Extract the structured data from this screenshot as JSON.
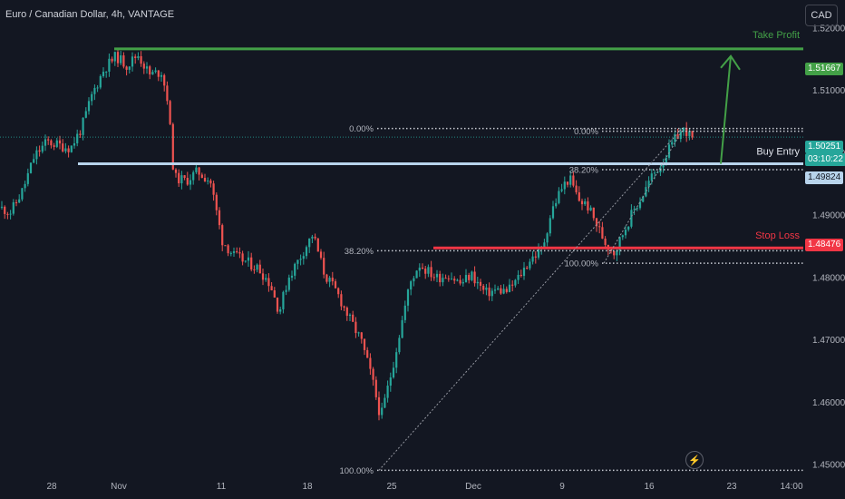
{
  "header": {
    "title": "Euro / Canadian Dollar, 4h, VANTAGE",
    "currency_button": "CAD"
  },
  "colors": {
    "up": "#26a69a",
    "down": "#ef5350",
    "take_profit": "#43a047",
    "stop_loss": "#f23645",
    "entry": "#b8d4ec",
    "current_price": "#26a69a",
    "grid_text": "#b2b5be"
  },
  "price_tags": {
    "take_profit": "1.51667",
    "current": "1.50251",
    "countdown": "03:10:22",
    "entry": "1.49824",
    "stop_loss": "1.48476"
  },
  "annotations": {
    "take_profit_label": "Take Profit",
    "entry_label": "Buy Entry",
    "stop_loss_label": "Stop Loss",
    "fib_left": {
      "top": "0.00%",
      "mid": "38.20%",
      "bottom": "100.00%"
    },
    "fib_right": {
      "top": "0.00%",
      "mid": "38.20%",
      "bottom": "100.00%"
    }
  },
  "chart_data": {
    "type": "candlestick",
    "title": "Euro / Canadian Dollar, 4h, VANTAGE",
    "ylim": [
      1.4445,
      1.5245
    ],
    "y_ticks": [
      "1.52000",
      "1.51000",
      "1.50000",
      "1.49000",
      "1.48000",
      "1.47000",
      "1.46000",
      "1.45000"
    ],
    "x_ticks": [
      "28",
      "Nov",
      "11",
      "18",
      "25",
      "Dec",
      "9",
      "16",
      "23",
      "14:00"
    ],
    "levels": {
      "take_profit": 1.51667,
      "entry": 1.49824,
      "stop_loss": 1.48476,
      "current": 1.50251
    },
    "fib_left": {
      "high": 1.5039,
      "level_382": 1.4843,
      "low": 1.4491
    },
    "fib_right": {
      "high": 1.5039,
      "level_382": 1.4973,
      "low": 1.4823
    },
    "price_path": [
      [
        0,
        1.4912
      ],
      [
        12,
        1.4905
      ],
      [
        25,
        1.494
      ],
      [
        38,
        1.4995
      ],
      [
        52,
        1.5018
      ],
      [
        65,
        1.5012
      ],
      [
        78,
        1.5008
      ],
      [
        90,
        1.504
      ],
      [
        102,
        1.5095
      ],
      [
        115,
        1.5135
      ],
      [
        128,
        1.5155
      ],
      [
        140,
        1.514
      ],
      [
        152,
        1.5158
      ],
      [
        165,
        1.5125
      ],
      [
        178,
        1.513
      ],
      [
        185,
        1.5085
      ],
      [
        192,
        1.496
      ],
      [
        205,
        1.4955
      ],
      [
        218,
        1.497
      ],
      [
        232,
        1.4955
      ],
      [
        245,
        1.486
      ],
      [
        258,
        1.4835
      ],
      [
        272,
        1.4825
      ],
      [
        285,
        1.4815
      ],
      [
        298,
        1.479
      ],
      [
        308,
        1.4745
      ],
      [
        318,
        1.48
      ],
      [
        330,
        1.483
      ],
      [
        345,
        1.487
      ],
      [
        358,
        1.4805
      ],
      [
        372,
        1.4775
      ],
      [
        385,
        1.4735
      ],
      [
        398,
        1.47
      ],
      [
        410,
        1.464
      ],
      [
        420,
        1.4575
      ],
      [
        432,
        1.465
      ],
      [
        442,
        1.472
      ],
      [
        452,
        1.479
      ],
      [
        462,
        1.4822
      ],
      [
        472,
        1.481
      ],
      [
        482,
        1.48
      ],
      [
        495,
        1.4805
      ],
      [
        508,
        1.479
      ],
      [
        520,
        1.4805
      ],
      [
        535,
        1.4775
      ],
      [
        548,
        1.478
      ],
      [
        560,
        1.4778
      ],
      [
        572,
        1.48
      ],
      [
        585,
        1.483
      ],
      [
        598,
        1.4845
      ],
      [
        608,
        1.4905
      ],
      [
        618,
        1.494
      ],
      [
        628,
        1.496
      ],
      [
        638,
        1.4925
      ],
      [
        648,
        1.4915
      ],
      [
        658,
        1.4885
      ],
      [
        668,
        1.4855
      ],
      [
        678,
        1.484
      ],
      [
        688,
        1.4875
      ],
      [
        698,
        1.4905
      ],
      [
        708,
        1.493
      ],
      [
        718,
        1.496
      ],
      [
        728,
        1.498
      ],
      [
        738,
        1.5005
      ],
      [
        748,
        1.503
      ],
      [
        756,
        1.5038
      ],
      [
        764,
        1.502
      ]
    ]
  }
}
